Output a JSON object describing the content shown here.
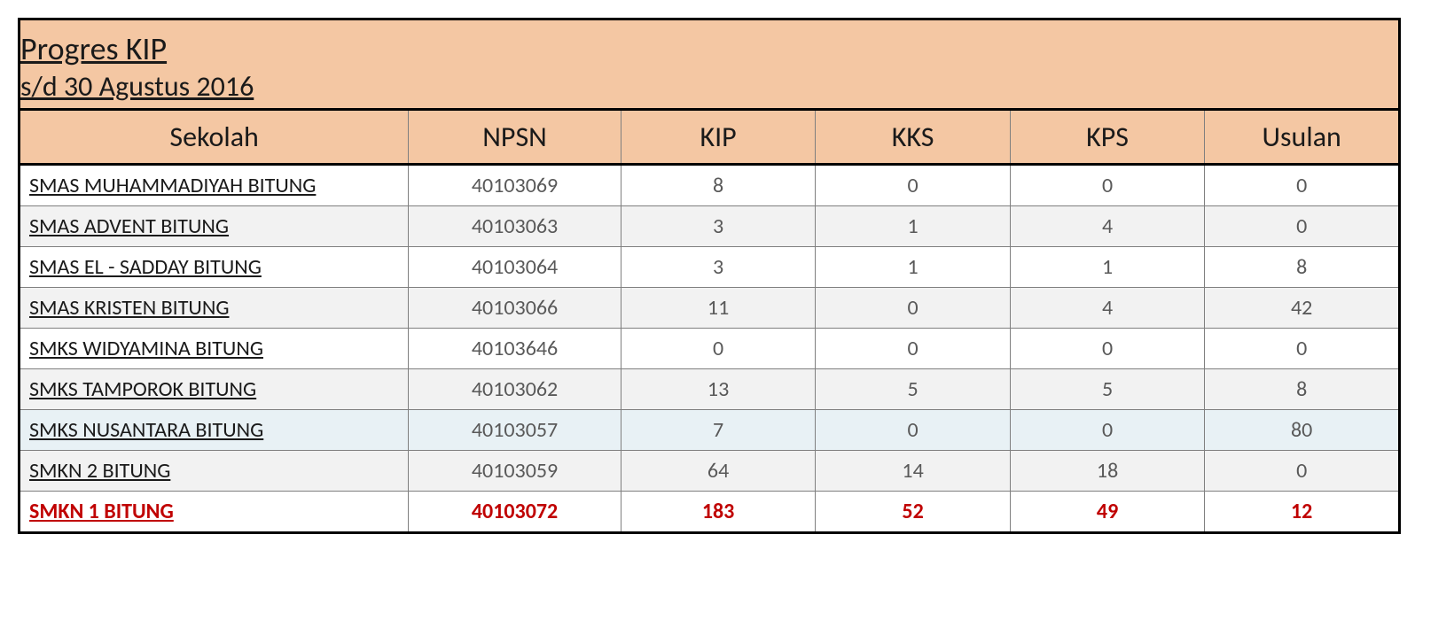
{
  "title": {
    "line1": "Progres KIP",
    "line2": "s/d 30 Agustus 2016"
  },
  "columns": [
    "Sekolah",
    "NPSN",
    "KIP",
    "KKS",
    "KPS",
    "Usulan"
  ],
  "rows": [
    {
      "sekolah": "SMAS MUHAMMADIYAH BITUNG",
      "npsn": "40103069",
      "kip": "8",
      "kks": "0",
      "kps": "0",
      "usulan": "0",
      "style": "normal"
    },
    {
      "sekolah": "SMAS ADVENT BITUNG",
      "npsn": "40103063",
      "kip": "3",
      "kks": "1",
      "kps": "4",
      "usulan": "0",
      "style": "normal"
    },
    {
      "sekolah": "SMAS EL - SADDAY BITUNG",
      "npsn": "40103064",
      "kip": "3",
      "kks": "1",
      "kps": "1",
      "usulan": "8",
      "style": "normal"
    },
    {
      "sekolah": "SMAS KRISTEN BITUNG",
      "npsn": "40103066",
      "kip": "11",
      "kks": "0",
      "kps": "4",
      "usulan": "42",
      "style": "normal"
    },
    {
      "sekolah": "SMKS WIDYAMINA BITUNG",
      "npsn": "40103646",
      "kip": "0",
      "kks": "0",
      "kps": "0",
      "usulan": "0",
      "style": "normal"
    },
    {
      "sekolah": "SMKS TAMPOROK BITUNG",
      "npsn": "40103062",
      "kip": "13",
      "kks": "5",
      "kps": "5",
      "usulan": "8",
      "style": "normal"
    },
    {
      "sekolah": "SMKS NUSANTARA BITUNG",
      "npsn": "40103057",
      "kip": "7",
      "kks": "0",
      "kps": "0",
      "usulan": "80",
      "style": "blue"
    },
    {
      "sekolah": "SMKN 2 BITUNG",
      "npsn": "40103059",
      "kip": "64",
      "kks": "14",
      "kps": "18",
      "usulan": "0",
      "style": "normal"
    },
    {
      "sekolah": "SMKN 1 BITUNG",
      "npsn": "40103072",
      "kip": "183",
      "kks": "52",
      "kps": "49",
      "usulan": "12",
      "style": "red"
    }
  ],
  "colors": {
    "header_bg": "#f4c7a3",
    "border_main": "#000000",
    "border_cell": "#7f7f7f",
    "text_dark": "#1a1a1a",
    "text_cell": "#595959",
    "row_even": "#f2f2f2",
    "row_odd": "#ffffff",
    "row_blue": "#e8f1f5",
    "text_red": "#c00000"
  }
}
